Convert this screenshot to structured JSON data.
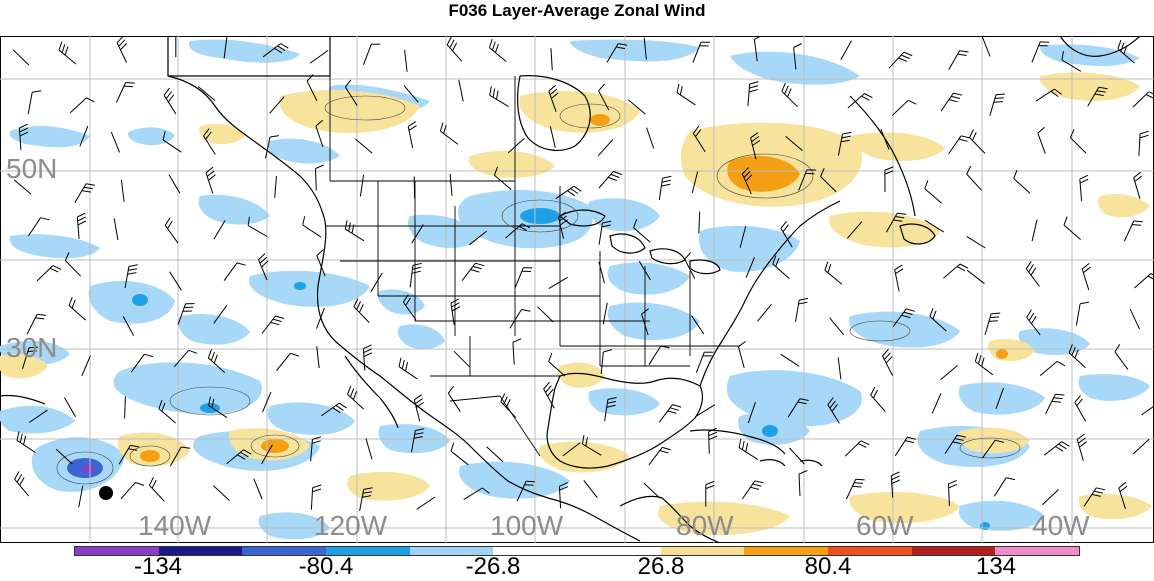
{
  "title": "F036 Layer-Average Zonal Wind",
  "lat_labels": [
    "50N",
    "30N"
  ],
  "lon_labels": [
    "140W",
    "120W",
    "100W",
    "80W",
    "60W",
    "40W"
  ],
  "colorbar": {
    "colors": [
      "#8a3dc8",
      "#1a1a8c",
      "#3c64d2",
      "#1ea0e6",
      "#a0d2f5",
      "#ffffff",
      "#ffffff",
      "#f5e196",
      "#f5a014",
      "#f0501e",
      "#b41e1e",
      "#f08cc8"
    ],
    "ticks": [
      "-134",
      "-80.4",
      "-26.8",
      "26.8",
      "80.4",
      "134"
    ]
  },
  "colors": {
    "negative_fill": "#a8d8f8",
    "negative_strong": "#1ea0e6",
    "positive_fill": "#f7e39b",
    "positive_strong": "#f5a014",
    "coast": "#000000",
    "grid": "#bdbdbd",
    "labels": "#8c8c8c"
  }
}
